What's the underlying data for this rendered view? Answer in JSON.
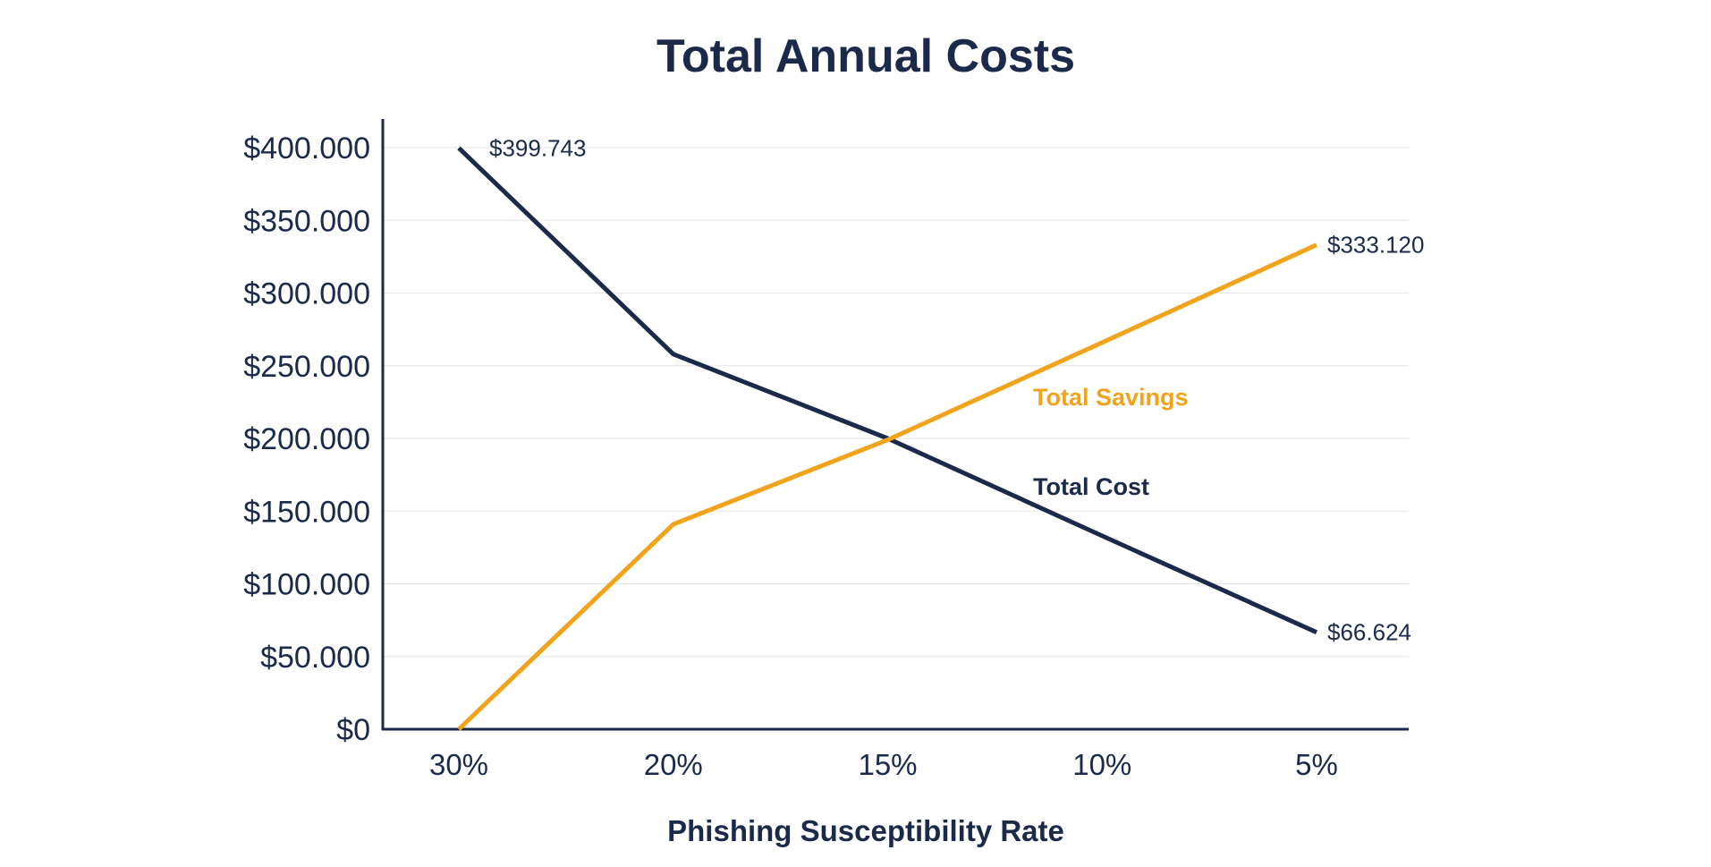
{
  "chart_data": {
    "type": "line",
    "title": "Total Annual Costs",
    "xlabel": "Phishing Susceptibility Rate",
    "ylabel": "",
    "categories": [
      "30%",
      "20%",
      "15%",
      "10%",
      "5%"
    ],
    "ylim": [
      0,
      400000
    ],
    "y_ticks": [
      {
        "value": 0,
        "label": "$0"
      },
      {
        "value": 50000,
        "label": "$50.000"
      },
      {
        "value": 100000,
        "label": "$100.000"
      },
      {
        "value": 150000,
        "label": "$150.000"
      },
      {
        "value": 200000,
        "label": "$200.000"
      },
      {
        "value": 250000,
        "label": "$250.000"
      },
      {
        "value": 300000,
        "label": "$300.000"
      },
      {
        "value": 350000,
        "label": "$350.000"
      },
      {
        "value": 400000,
        "label": "$400.000"
      }
    ],
    "grid": true,
    "series": [
      {
        "name": "Total Cost",
        "color": "#1b2a4a",
        "values": [
          399743,
          258000,
          200000,
          133000,
          66624
        ],
        "data_labels": [
          {
            "index": 0,
            "text": "$399.743"
          },
          {
            "index": 4,
            "text": "$66.624"
          }
        ]
      },
      {
        "name": "Total Savings",
        "color": "#f2a31c",
        "values": [
          0,
          141000,
          199000,
          266000,
          333120
        ],
        "data_labels": [
          {
            "index": 4,
            "text": "$333.120"
          }
        ]
      }
    ]
  }
}
